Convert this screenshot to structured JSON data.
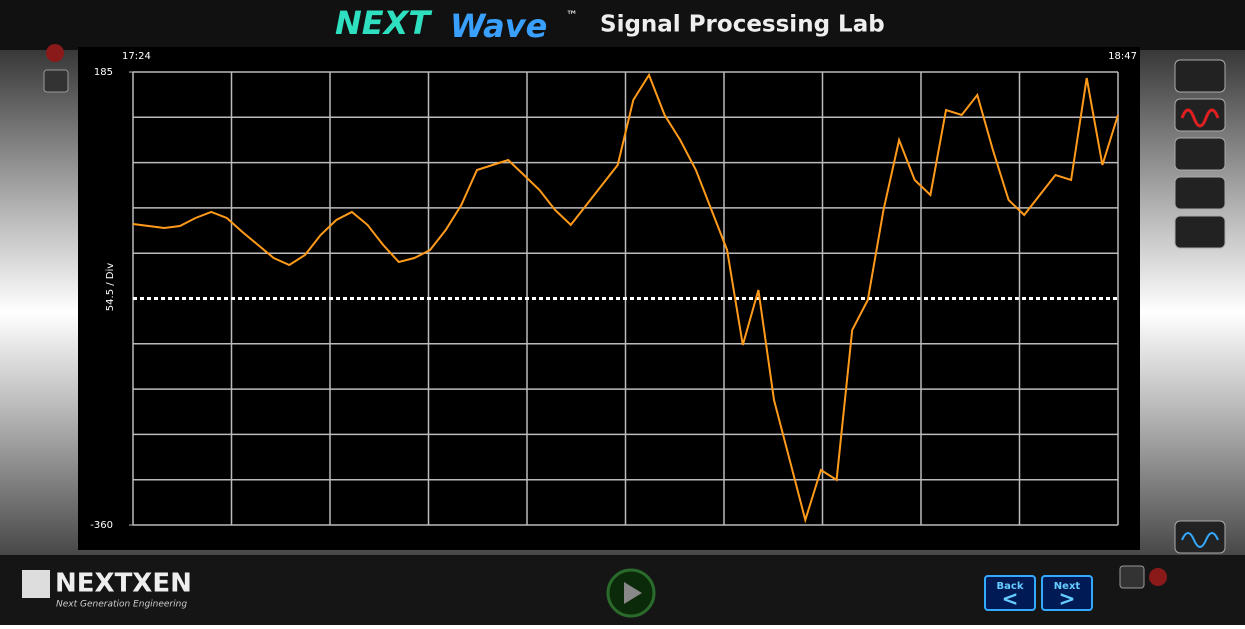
{
  "header": {
    "logo_next": "NEXT",
    "logo_wave": "Wave",
    "logo_tm": "™",
    "title": "Signal Processing Lab"
  },
  "chart_data": {
    "type": "line",
    "color": "#ff9a1a",
    "x_start_label": "17:24",
    "x_end_label": "18:47",
    "y_axis_label": "54.5 / Div",
    "ylim": [
      -360,
      185
    ],
    "yticks": [
      -360,
      185
    ],
    "grid": true,
    "values": [
      2.1,
      -0.3,
      -2.7,
      -0.3,
      9.3,
      16.6,
      9.3,
      -7.5,
      -23.1,
      -38.8,
      -47.2,
      -35.2,
      -11.1,
      6.9,
      16.6,
      1.0,
      -23.1,
      -43.6,
      -38.8,
      -29.1,
      -5.1,
      25.0,
      67.1,
      73.1,
      79.1,
      61.1,
      43.0,
      19.0,
      1.0,
      25.0,
      49.0,
      73.1,
      151.3,
      181.4,
      133.3,
      103.2,
      67.1,
      19.0,
      -29.1,
      -143.4,
      -77.3,
      -209.6,
      -281.8,
      -354.0,
      -293.8,
      -305.8,
      -125.4,
      -89.3,
      19.0,
      103.2,
      55.1,
      37.0,
      139.3,
      133.3,
      157.3,
      91.2,
      31.0,
      13.0,
      37.0,
      61.1,
      55.1,
      177.8,
      73.1,
      133.3
    ]
  },
  "footer": {
    "brand": "NEXTXEN",
    "tagline": "Next Generation Engineering",
    "back": "Back",
    "back_arrow": "<",
    "next": "Next",
    "next_arrow": ">"
  }
}
